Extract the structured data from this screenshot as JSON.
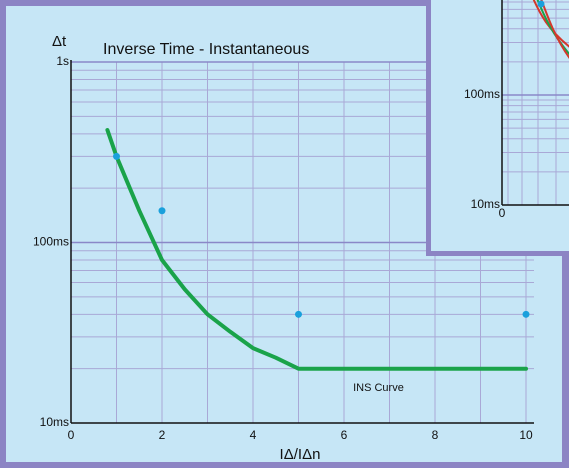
{
  "colors": {
    "frame": "#8c84c4",
    "panel": "#c6e6f6",
    "grid_major": "#8a88c8",
    "grid_minor": "#a9a8d6",
    "axis": "#111111",
    "curve": "#1aa34a",
    "points": "#1aa0dc",
    "inset_curves": [
      "#d4382c",
      "#1aa34a"
    ]
  },
  "chart_data": [
    {
      "type": "line",
      "title": "Inverse Time - Instantaneous",
      "xlabel": "IΔ/IΔn",
      "ylabel": "Δt",
      "xlim": [
        0,
        10
      ],
      "ylim_ms": [
        10,
        1000
      ],
      "y_scale": "log",
      "grid": true,
      "x_ticks": [
        "0",
        "2",
        "4",
        "6",
        "8",
        "10"
      ],
      "y_ticks": [
        {
          "value_ms": 1000,
          "label": "1s"
        },
        {
          "value_ms": 100,
          "label": "100ms"
        },
        {
          "value_ms": 10,
          "label": "10ms"
        }
      ],
      "series": [
        {
          "name": "INS Curve",
          "x": [
            0.8,
            1.0,
            1.5,
            2.0,
            2.5,
            3.0,
            3.5,
            4.0,
            4.5,
            5.0,
            10.0
          ],
          "y_ms": [
            420,
            300,
            150,
            80,
            55,
            40,
            32,
            26,
            23,
            20,
            20
          ]
        }
      ],
      "points": {
        "x": [
          1,
          2,
          5,
          10
        ],
        "y_ms": [
          300,
          150,
          40,
          40
        ]
      },
      "annotations": [
        {
          "text": "INS Curve",
          "x": 6.2,
          "y_ms": 15
        }
      ]
    },
    {
      "type": "line",
      "inset": true,
      "y_scale": "log",
      "grid": true,
      "x_ticks": [
        "0"
      ],
      "y_ticks": [
        {
          "value_ms": 100,
          "label": "100ms"
        },
        {
          "value_ms": 10,
          "label": "10ms"
        }
      ]
    }
  ]
}
